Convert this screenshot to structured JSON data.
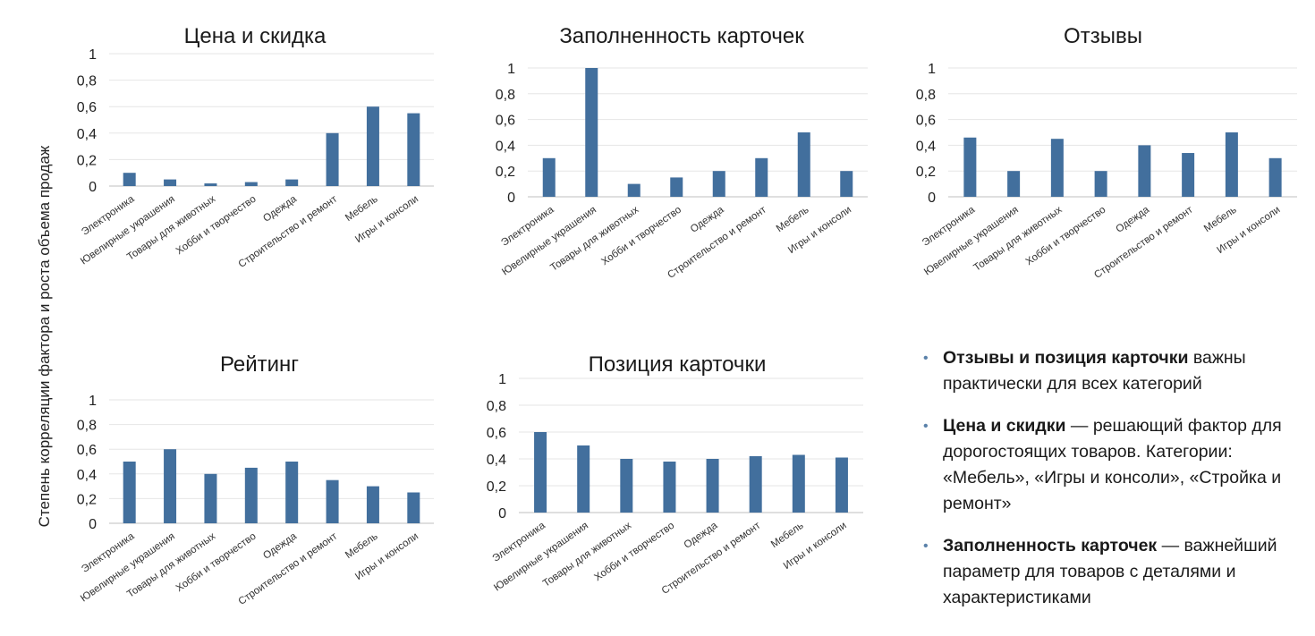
{
  "y_axis_label": "Степень корреляции фактора и роста объема продаж",
  "chart_data": [
    {
      "type": "bar",
      "title": "Цена и скидка",
      "categories": [
        "Электроника",
        "Ювелирные украшения",
        "Товары для животных",
        "Хобби и творчество",
        "Одежда",
        "Строительство и ремонт",
        "Мебель",
        "Игры и консоли"
      ],
      "values": [
        0.1,
        0.05,
        0.02,
        0.03,
        0.05,
        0.4,
        0.6,
        0.55
      ],
      "ylim": [
        0,
        1
      ],
      "yticks": [
        "0",
        "0,2",
        "0,4",
        "0,6",
        "0,8",
        "1"
      ]
    },
    {
      "type": "bar",
      "title": "Заполненность карточек",
      "categories": [
        "Электроника",
        "Ювелирные украшения",
        "Товары для животных",
        "Хобби и творчество",
        "Одежда",
        "Строительство и ремонт",
        "Мебель",
        "Игры и консоли"
      ],
      "values": [
        0.3,
        1.0,
        0.1,
        0.15,
        0.2,
        0.3,
        0.5,
        0.2
      ],
      "ylim": [
        0,
        1
      ],
      "yticks": [
        "0",
        "0,2",
        "0,4",
        "0,6",
        "0,8",
        "1"
      ]
    },
    {
      "type": "bar",
      "title": "Отзывы",
      "categories": [
        "Электроника",
        "Ювелирные украшения",
        "Товары для животных",
        "Хобби и творчество",
        "Одежда",
        "Строительство и ремонт",
        "Мебель",
        "Игры и консоли"
      ],
      "values": [
        0.46,
        0.2,
        0.45,
        0.2,
        0.4,
        0.34,
        0.5,
        0.3
      ],
      "ylim": [
        0,
        1
      ],
      "yticks": [
        "0",
        "0,2",
        "0,4",
        "0,6",
        "0,8",
        "1"
      ]
    },
    {
      "type": "bar",
      "title": "Рейтинг",
      "categories": [
        "Электроника",
        "Ювелирные украшения",
        "Товары для животных",
        "Хобби и творчество",
        "Одежда",
        "Строительство и ремонт",
        "Мебель",
        "Игры и консоли"
      ],
      "values": [
        0.5,
        0.6,
        0.4,
        0.45,
        0.5,
        0.35,
        0.3,
        0.25
      ],
      "ylim": [
        0,
        1
      ],
      "yticks": [
        "0",
        "0,2",
        "0,4",
        "0,6",
        "0,8",
        "1"
      ]
    },
    {
      "type": "bar",
      "title": "Позиция карточки",
      "categories": [
        "Электроника",
        "Ювелирные украшения",
        "Товары для животных",
        "Хобби и творчество",
        "Одежда",
        "Строительство и ремонт",
        "Мебель",
        "Игры и консоли"
      ],
      "values": [
        0.6,
        0.5,
        0.4,
        0.38,
        0.4,
        0.42,
        0.43,
        0.41
      ],
      "ylim": [
        0,
        1
      ],
      "yticks": [
        "0",
        "0,2",
        "0,4",
        "0,6",
        "0,8",
        "1"
      ]
    }
  ],
  "colors": {
    "bar": "#426f9d",
    "bullet": "#5b82aa"
  },
  "notes": [
    {
      "bold": "Отзывы и позиция карточки",
      "text": " важны практически для всех категорий"
    },
    {
      "bold": "Цена и скидки",
      "text": " — решающий фактор для дорогостоящих товаров. Категории: «Мебель», «Игры и консоли», «Стройка и ремонт»"
    },
    {
      "bold": "Заполненность карточек",
      "text": " — важнейший параметр для товаров с деталями и характеристиками"
    }
  ]
}
